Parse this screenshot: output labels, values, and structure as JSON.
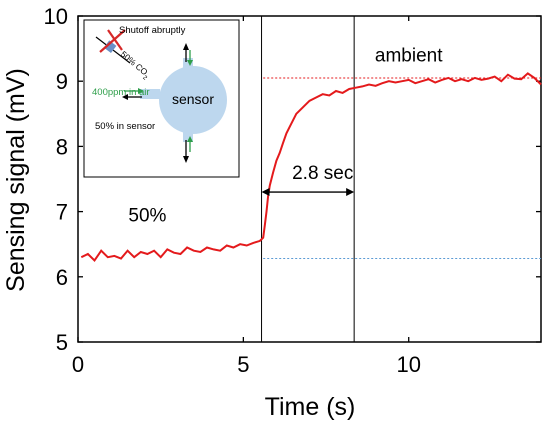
{
  "chart_data": {
    "type": "line",
    "xlabel": "Time (s)",
    "ylabel": "Sensing signal (mV)",
    "xlim": [
      0,
      14
    ],
    "ylim": [
      5,
      10
    ],
    "x_ticks": [
      "0",
      "5",
      "10"
    ],
    "y_ticks": [
      "5",
      "6",
      "7",
      "8",
      "9",
      "10"
    ],
    "x_tick_values": [
      0,
      5,
      10
    ],
    "y_tick_values": [
      5,
      6,
      7,
      8,
      9,
      10
    ],
    "grid": false,
    "series": [
      {
        "color": "#e41a1c",
        "x": [
          0.1,
          0.3,
          0.5,
          0.7,
          0.9,
          1.1,
          1.3,
          1.5,
          1.7,
          1.9,
          2.1,
          2.3,
          2.5,
          2.7,
          2.9,
          3.1,
          3.3,
          3.5,
          3.7,
          3.9,
          4.1,
          4.3,
          4.5,
          4.7,
          4.9,
          5.1,
          5.3,
          5.5,
          5.6,
          5.65,
          5.7,
          5.75,
          5.8,
          5.9,
          6.0,
          6.1,
          6.2,
          6.3,
          6.4,
          6.5,
          6.6,
          6.8,
          7.0,
          7.2,
          7.4,
          7.6,
          7.8,
          8.0,
          8.2,
          8.4,
          8.6,
          8.8,
          9.0,
          9.2,
          9.4,
          9.6,
          9.8,
          10.0,
          10.2,
          10.4,
          10.6,
          10.8,
          11.0,
          11.2,
          11.4,
          11.6,
          11.8,
          12.0,
          12.2,
          12.4,
          12.6,
          12.8,
          13.0,
          13.2,
          13.4,
          13.6,
          13.8,
          14.0
        ],
        "y": [
          6.3,
          6.35,
          6.25,
          6.4,
          6.3,
          6.32,
          6.28,
          6.4,
          6.3,
          6.38,
          6.35,
          6.4,
          6.3,
          6.42,
          6.37,
          6.35,
          6.45,
          6.4,
          6.38,
          6.45,
          6.42,
          6.4,
          6.48,
          6.45,
          6.5,
          6.48,
          6.52,
          6.55,
          6.6,
          6.8,
          7.0,
          7.25,
          7.4,
          7.6,
          7.78,
          7.9,
          8.05,
          8.2,
          8.3,
          8.4,
          8.5,
          8.6,
          8.7,
          8.75,
          8.8,
          8.78,
          8.85,
          8.82,
          8.88,
          8.9,
          8.92,
          8.95,
          8.93,
          8.97,
          9.0,
          8.98,
          9.0,
          9.02,
          8.97,
          9.0,
          9.03,
          8.98,
          9.02,
          9.05,
          9.0,
          9.03,
          9.0,
          9.05,
          9.02,
          9.04,
          9.07,
          9.0,
          9.1,
          9.04,
          9.03,
          9.12,
          9.05,
          8.95
        ]
      }
    ],
    "reference_lines": [
      {
        "orientation": "horizontal",
        "y": 9.05,
        "color": "#e41a1c",
        "style": "dotted",
        "x_from": 5.6
      },
      {
        "orientation": "horizontal",
        "y": 6.28,
        "color": "#5b9bd5",
        "style": "dotted",
        "x_from": 5.6
      }
    ],
    "vertical_markers": [
      5.55,
      8.35
    ],
    "annotations": [
      {
        "text": "ambient",
        "x": 10.0,
        "y": 9.3
      },
      {
        "text": "50%",
        "x": 2.1,
        "y": 6.85
      },
      {
        "text": "2.8 sec",
        "x": 7.4,
        "y": 7.5
      }
    ],
    "arrow_span": {
      "from": 5.55,
      "to": 8.35,
      "y": 7.3
    }
  },
  "inset": {
    "label_shutoff": "Shutoff abruptly",
    "label_co2": "50% CO",
    "label_co2_sub": "2",
    "label_air": "400ppm in air",
    "label_sensor_gas": "50% in sensor",
    "label_sensor": "sensor",
    "colors": {
      "sensor_fill": "#bdd7ee",
      "air_text": "#2e9e4a",
      "cross": "#d62828",
      "valve": "#6a8fc7"
    }
  }
}
